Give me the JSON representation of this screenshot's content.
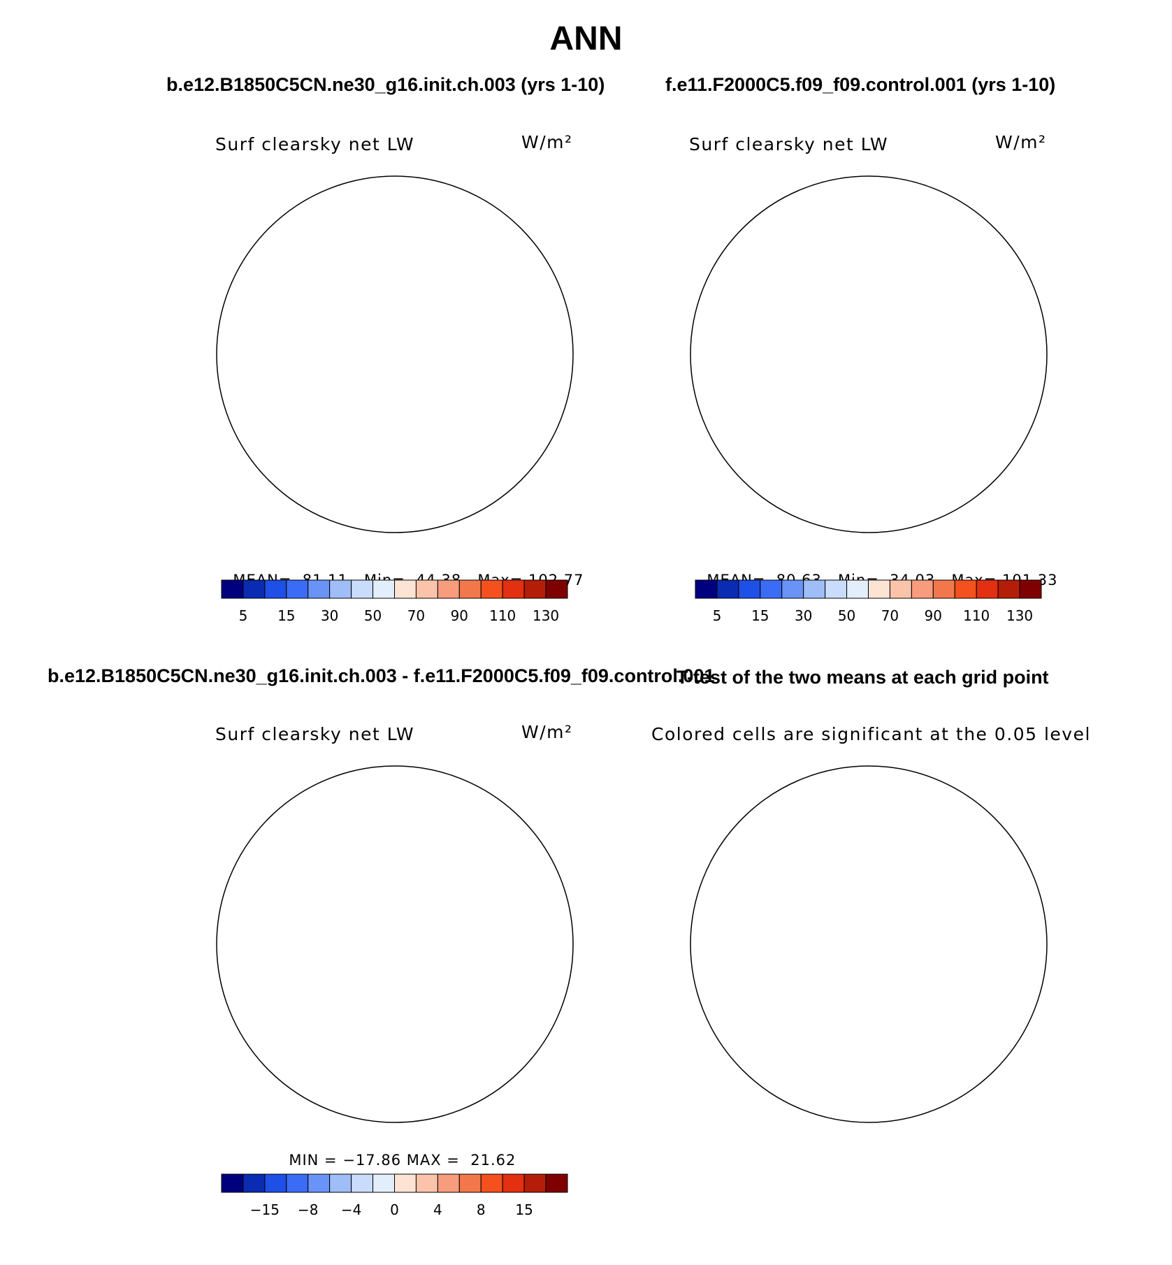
{
  "page": {
    "title": "ANN"
  },
  "colors": {
    "abs_scale": [
      "#00007f",
      "#0a2cb3",
      "#1e4fe6",
      "#3b6cf5",
      "#6a93f7",
      "#9fbdf7",
      "#c9dcfb",
      "#e3eefc",
      "#fde3d3",
      "#fbc4aa",
      "#f79c7c",
      "#f2784b",
      "#f4511e",
      "#e23010",
      "#b41e08",
      "#7f0000"
    ],
    "diff_scale": [
      "#00007f",
      "#0a2cb3",
      "#1e4fe6",
      "#3b6cf5",
      "#6a93f7",
      "#9fbdf7",
      "#c9dcfb",
      "#e3eefc",
      "#fde3d3",
      "#fbc4aa",
      "#f79c7c",
      "#f2784b",
      "#f4511e",
      "#e23010",
      "#b41e08",
      "#7f0000"
    ],
    "significant": "#f2784b",
    "coast": "#000000"
  },
  "panels": {
    "p1": {
      "case_title": "b.e12.B1850C5CN.ne30_g16.init.ch.003 (yrs 1-10)",
      "var_label": "Surf clearsky net LW",
      "units": "W/m²",
      "stats": {
        "mean_label": "MEAN=",
        "mean": "81.11",
        "min_label": "Min=",
        "min": "44.38",
        "max_label": "Max=",
        "max": "102.77"
      },
      "ticks": [
        "5",
        "15",
        "30",
        "50",
        "70",
        "90",
        "110",
        "130"
      ]
    },
    "p2": {
      "case_title": "f.e11.F2000C5.f09_f09.control.001 (yrs 1-10)",
      "var_label": "Surf clearsky net LW",
      "units": "W/m²",
      "stats": {
        "mean_label": "MEAN=",
        "mean": "80.63",
        "min_label": "Min=",
        "min": "34.03",
        "max_label": "Max=",
        "max": "101.33"
      },
      "ticks": [
        "5",
        "15",
        "30",
        "50",
        "70",
        "90",
        "110",
        "130"
      ]
    },
    "p3": {
      "case_title": "b.e12.B1850C5CN.ne30_g16.init.ch.003 - f.e11.F2000C5.f09_f09.control.001",
      "var_label": "Surf clearsky net LW",
      "units": "W/m²",
      "stats": {
        "min_label": "MIN =",
        "min": "−17.86",
        "max_label": "MAX =",
        "max": "21.62"
      },
      "ticks": [
        "−15",
        "−8",
        "−4",
        "0",
        "4",
        "8",
        "15"
      ]
    },
    "p4": {
      "case_title": "T-test of the two means at each grid point",
      "subtitle": "Colored cells are significant at the 0.05 level"
    }
  },
  "chart_data": [
    {
      "type": "heatmap",
      "title": "b.e12.B1850C5CN.ne30_g16.init.ch.003 (yrs 1-10)",
      "variable": "Surf clearsky net LW",
      "units": "W/m²",
      "projection": "south polar stereographic",
      "stats": {
        "mean": 81.11,
        "min": 44.38,
        "max": 102.77
      },
      "colorbar_ticks": [
        5,
        15,
        30,
        50,
        70,
        90,
        110,
        130
      ]
    },
    {
      "type": "heatmap",
      "title": "f.e11.F2000C5.f09_f09.control.001 (yrs 1-10)",
      "variable": "Surf clearsky net LW",
      "units": "W/m²",
      "projection": "south polar stereographic",
      "stats": {
        "mean": 80.63,
        "min": 34.03,
        "max": 101.33
      },
      "colorbar_ticks": [
        5,
        15,
        30,
        50,
        70,
        90,
        110,
        130
      ]
    },
    {
      "type": "heatmap",
      "title": "b.e12.B1850C5CN.ne30_g16.init.ch.003 - f.e11.F2000C5.f09_f09.control.001",
      "variable": "Surf clearsky net LW",
      "units": "W/m²",
      "projection": "south polar stereographic",
      "stats": {
        "min": -17.86,
        "max": 21.62
      },
      "colorbar_ticks": [
        -15,
        -8,
        -4,
        0,
        4,
        8,
        15
      ]
    },
    {
      "type": "heatmap",
      "title": "T-test of the two means at each grid point",
      "subtitle": "Colored cells are significant at the 0.05 level",
      "projection": "south polar stereographic"
    }
  ]
}
